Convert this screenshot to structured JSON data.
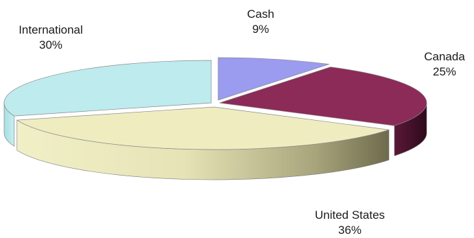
{
  "chart_data": {
    "type": "pie",
    "title": "",
    "slices": [
      {
        "label": "Cash",
        "percent_label": "9%",
        "value": 9,
        "color": "#9B9BF0",
        "side_color": "#6F6FBF"
      },
      {
        "label": "Canada",
        "percent_label": "25%",
        "value": 25,
        "color": "#8C2A58",
        "side_color": "#4A1330"
      },
      {
        "label": "United States",
        "percent_label": "36%",
        "value": 36,
        "color": "#EFEDC0",
        "side_color": "#8E8B62"
      },
      {
        "label": "International",
        "percent_label": "30%",
        "value": 30,
        "color": "#BDEBEE",
        "side_color": "#8FC7CB"
      }
    ],
    "style": "3d-exploded-tilted",
    "legend": "none",
    "grid": false
  }
}
